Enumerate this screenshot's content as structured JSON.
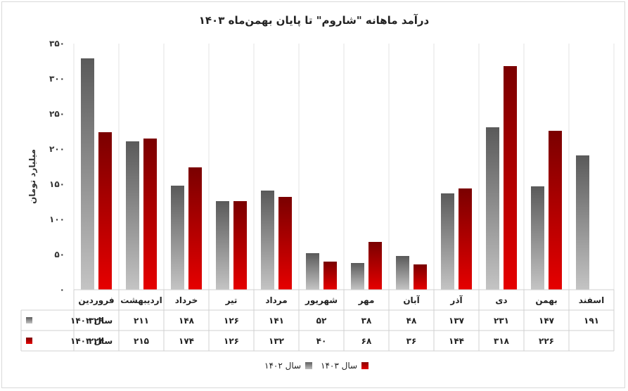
{
  "chart_data": {
    "type": "bar",
    "title": "درآمد ماهانه \"شاروم\" تا پایان بهمن‌ماه ۱۴۰۳",
    "xlabel": "",
    "ylabel": "میلیارد تومان",
    "ylim": [
      0,
      350
    ],
    "yticks": [
      0,
      50,
      100,
      150,
      200,
      250,
      300,
      350
    ],
    "ytick_labels": [
      "۰",
      "۵۰",
      "۱۰۰",
      "۱۵۰",
      "۲۰۰",
      "۲۵۰",
      "۳۰۰",
      "۳۵۰"
    ],
    "grid": "vertical",
    "legend": "bottom-center",
    "categories": [
      "فروردین",
      "اردیبهشت",
      "خرداد",
      "تیر",
      "مرداد",
      "شهریور",
      "مهر",
      "آبان",
      "آذر",
      "دی",
      "بهمن",
      "اسفند"
    ],
    "series": [
      {
        "name": "سال ۱۴۰۲",
        "color": "#7a7a7a",
        "values": [
          329,
          211,
          148,
          126,
          141,
          52,
          38,
          48,
          137,
          231,
          147,
          191
        ],
        "labels": [
          "۳۲۹",
          "۲۱۱",
          "۱۴۸",
          "۱۲۶",
          "۱۴۱",
          "۵۲",
          "۳۸",
          "۴۸",
          "۱۳۷",
          "۲۳۱",
          "۱۴۷",
          "۱۹۱"
        ]
      },
      {
        "name": "سال ۱۴۰۳",
        "color": "#b00000",
        "values": [
          224,
          215,
          174,
          126,
          132,
          40,
          68,
          36,
          144,
          318,
          226,
          null
        ],
        "labels": [
          "۲۲۴",
          "۲۱۵",
          "۱۷۴",
          "۱۲۶",
          "۱۳۲",
          "۴۰",
          "۶۸",
          "۳۶",
          "۱۴۴",
          "۳۱۸",
          "۲۲۶",
          ""
        ]
      }
    ]
  }
}
